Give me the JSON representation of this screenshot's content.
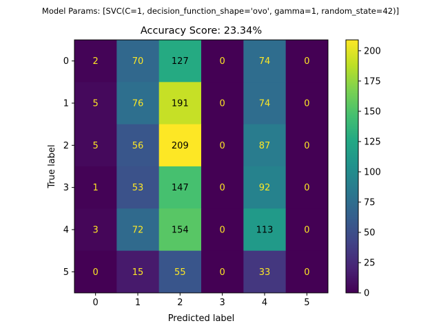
{
  "suptitle": "Model Params: [SVC(C=1, decision_function_shape='ovo', gamma=1, random_state=42)]",
  "chart_data": {
    "type": "heatmap",
    "title": "Accuracy Score: 23.34%",
    "xlabel": "Predicted label",
    "ylabel": "True label",
    "x_categories": [
      "0",
      "1",
      "2",
      "3",
      "4",
      "5"
    ],
    "y_categories": [
      "0",
      "1",
      "2",
      "3",
      "4",
      "5"
    ],
    "matrix": [
      [
        2,
        70,
        127,
        0,
        74,
        0
      ],
      [
        5,
        76,
        191,
        0,
        74,
        0
      ],
      [
        5,
        56,
        209,
        0,
        87,
        0
      ],
      [
        1,
        53,
        147,
        0,
        92,
        0
      ],
      [
        3,
        72,
        154,
        0,
        113,
        0
      ],
      [
        0,
        15,
        55,
        0,
        33,
        0
      ]
    ],
    "colormap": "viridis",
    "vmin": 0,
    "vmax": 209,
    "colorbar_ticks": [
      0,
      25,
      50,
      75,
      100,
      125,
      150,
      175,
      200
    ],
    "grid": false,
    "label_color_light": "#fde725",
    "label_color_dark": "#000000"
  }
}
